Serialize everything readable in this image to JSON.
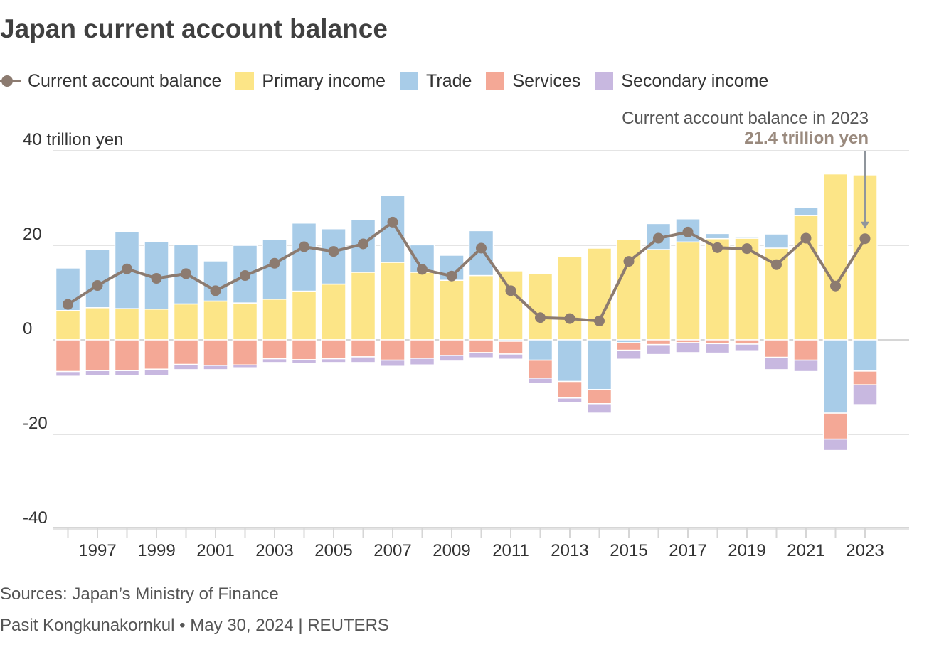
{
  "header": {
    "title": "Japan current account balance"
  },
  "legend": [
    {
      "label": "Current account balance",
      "kind": "line",
      "color": "#8c7b70"
    },
    {
      "label": "Primary income",
      "kind": "box",
      "color": "#fce587"
    },
    {
      "label": "Trade",
      "kind": "box",
      "color": "#a8cce8"
    },
    {
      "label": "Services",
      "kind": "box",
      "color": "#f4a896"
    },
    {
      "label": "Secondary income",
      "kind": "box",
      "color": "#c8b8e0"
    }
  ],
  "chart_data": {
    "type": "bar",
    "subtype": "stacked-bar-with-line",
    "title": "Japan current account balance",
    "ylabel": "40 trillion yen",
    "ylim": [
      -40,
      40
    ],
    "yticks": [
      40,
      20,
      0,
      -20,
      -40
    ],
    "ytick_labels": [
      "40 trillion yen",
      "20",
      "0",
      "-20",
      "-40"
    ],
    "grid": true,
    "legend_position": "top",
    "categories": [
      1996,
      1997,
      1998,
      1999,
      2000,
      2001,
      2002,
      2003,
      2004,
      2005,
      2006,
      2007,
      2008,
      2009,
      2010,
      2011,
      2012,
      2013,
      2014,
      2015,
      2016,
      2017,
      2018,
      2019,
      2020,
      2021,
      2022,
      2023
    ],
    "xtick_labels": [
      "1997",
      "1999",
      "2001",
      "2003",
      "2005",
      "2007",
      "2009",
      "2011",
      "2013",
      "2015",
      "2017",
      "2019",
      "2021",
      "2023"
    ],
    "series": [
      {
        "name": "Primary income",
        "color": "#fce587",
        "values": [
          6.2,
          6.8,
          6.6,
          6.5,
          7.6,
          8.2,
          7.8,
          8.6,
          10.3,
          11.8,
          14.3,
          16.4,
          14.3,
          12.6,
          13.6,
          14.6,
          14.1,
          17.7,
          19.4,
          21.3,
          19.1,
          20.7,
          21.4,
          21.5,
          19.4,
          26.3,
          35.1,
          34.9
        ]
      },
      {
        "name": "Trade",
        "color": "#a8cce8",
        "values": [
          9.0,
          12.4,
          16.3,
          14.3,
          12.6,
          8.5,
          12.2,
          12.6,
          14.4,
          11.7,
          11.1,
          14.1,
          5.8,
          5.3,
          9.5,
          -0.3,
          -4.3,
          -8.8,
          -10.5,
          -0.6,
          5.5,
          4.9,
          1.1,
          0.4,
          3.0,
          1.7,
          -15.5,
          -6.6
        ]
      },
      {
        "name": "Services",
        "color": "#f4a896",
        "values": [
          -6.7,
          -6.5,
          -6.5,
          -6.2,
          -5.2,
          -5.4,
          -5.3,
          -4.0,
          -4.2,
          -4.0,
          -3.6,
          -4.3,
          -3.9,
          -3.3,
          -2.7,
          -2.7,
          -3.8,
          -3.5,
          -3.0,
          -1.6,
          -1.0,
          -0.6,
          -0.8,
          -0.9,
          -3.7,
          -4.3,
          -5.5,
          -2.9
        ]
      },
      {
        "name": "Secondary income",
        "color": "#c8b8e0",
        "values": [
          -1.0,
          -1.1,
          -1.1,
          -1.3,
          -1.1,
          -0.9,
          -0.6,
          -0.8,
          -0.8,
          -0.8,
          -1.2,
          -1.3,
          -1.4,
          -1.2,
          -1.1,
          -1.1,
          -1.1,
          -1.0,
          -2.0,
          -1.9,
          -2.1,
          -2.1,
          -2.0,
          -1.4,
          -2.6,
          -2.4,
          -2.4,
          -4.2
        ]
      },
      {
        "name": "Current account balance",
        "color": "#8c7b70",
        "values": [
          7.5,
          11.5,
          15.0,
          13.0,
          14.0,
          10.4,
          13.6,
          16.2,
          19.7,
          18.7,
          20.3,
          24.9,
          14.9,
          13.5,
          19.4,
          10.4,
          4.7,
          4.5,
          4.0,
          16.6,
          21.5,
          22.8,
          19.5,
          19.3,
          15.9,
          21.5,
          11.4,
          21.4
        ]
      }
    ],
    "annotation": {
      "label": "Current account balance in 2023",
      "value_label": "21.4 trillion yen",
      "year": 2023
    }
  },
  "footer": {
    "sources": "Sources: Japan’s Ministry of Finance",
    "byline": "Pasit Kongkunakornkul • May 30, 2024 | REUTERS"
  }
}
